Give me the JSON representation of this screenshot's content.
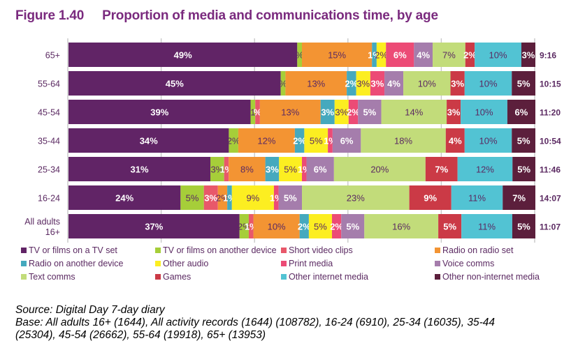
{
  "header": {
    "figure_number": "Figure 1.40",
    "title": "Proportion of media and communications time, by age"
  },
  "chart_data": {
    "type": "bar",
    "orientation": "horizontal",
    "stacked": "percent",
    "title": "Proportion of media and communications time, by age",
    "xlabel": "",
    "ylabel": "",
    "xlim": [
      0,
      100
    ],
    "grid": true,
    "gridlines_at": [
      0,
      20,
      40,
      60,
      80,
      100
    ],
    "legend_position": "bottom",
    "categories": [
      "65+",
      "55-64",
      "45-54",
      "35-44",
      "25-34",
      "16-24",
      "All adults 16+"
    ],
    "category_lines": [
      [
        "65+"
      ],
      [
        "55-64"
      ],
      [
        "45-54"
      ],
      [
        "35-44"
      ],
      [
        "25-34"
      ],
      [
        "16-24"
      ],
      [
        "All adults",
        "16+"
      ]
    ],
    "totals": [
      "9:16",
      "10:15",
      "11:20",
      "10:54",
      "11:46",
      "14:07",
      "11:07"
    ],
    "series": [
      {
        "name": "TV or films on a TV set",
        "color": "#612466",
        "label_color": "#ffffff",
        "values": [
          49,
          45,
          39,
          34,
          31,
          24,
          37
        ],
        "labels": [
          "49%",
          "45%",
          "39%",
          "34%",
          "31%",
          "24%",
          "37%"
        ]
      },
      {
        "name": "TV or films on another device",
        "color": "#a6ce39",
        "label_color": "#5b2a62",
        "values": [
          1,
          1,
          1,
          2,
          3,
          5,
          2
        ],
        "labels": [
          "%",
          "%",
          "1",
          "2%",
          "3%",
          "5%",
          "2%"
        ]
      },
      {
        "name": "Short video clips",
        "color": "#e8586a",
        "label_color": "#ffffff",
        "values": [
          0,
          0,
          1,
          0,
          1,
          3,
          1
        ],
        "labels": [
          "",
          "",
          "%",
          "",
          "1%",
          "3%",
          "1%"
        ]
      },
      {
        "name": "Radio on radio set",
        "color": "#f39433",
        "label_color": "#5b2a62",
        "values": [
          15,
          13,
          13,
          12,
          8,
          2,
          10
        ],
        "labels": [
          "15%",
          "13%",
          "13%",
          "12%",
          "8%",
          "2%",
          "10%"
        ]
      },
      {
        "name": "Radio on another device",
        "color": "#45a9be",
        "label_color": "#ffffff",
        "values": [
          1,
          2,
          3,
          2,
          3,
          1,
          2
        ],
        "labels": [
          "1%",
          "2%",
          "3%",
          "2%",
          "3%",
          "1%",
          "2%"
        ]
      },
      {
        "name": "Other audio",
        "color": "#fcee21",
        "label_color": "#5b2a62",
        "values": [
          2,
          3,
          3,
          5,
          5,
          9,
          5
        ],
        "labels": [
          "2%",
          "3%",
          "3%",
          "5%",
          "5%",
          "9%",
          "5%"
        ]
      },
      {
        "name": "Print media",
        "color": "#ec4b76",
        "label_color": "#ffffff",
        "values": [
          6,
          3,
          2,
          1,
          1,
          1,
          2
        ],
        "labels": [
          "6%",
          "3%",
          "2%",
          "1%",
          "1%",
          "1%",
          "2%"
        ]
      },
      {
        "name": "Voice comms",
        "color": "#a57dac",
        "label_color": "#ffffff",
        "values": [
          4,
          4,
          5,
          6,
          6,
          5,
          5
        ],
        "labels": [
          "4%",
          "4%",
          "5%",
          "6%",
          "6%",
          "5%",
          "5%"
        ]
      },
      {
        "name": "Text comms",
        "color": "#c2dc7a",
        "label_color": "#5b2a62",
        "values": [
          7,
          10,
          14,
          18,
          20,
          23,
          16
        ],
        "labels": [
          "7%",
          "10%",
          "14%",
          "18%",
          "20%",
          "23%",
          "16%"
        ]
      },
      {
        "name": "Games",
        "color": "#cb3a46",
        "label_color": "#ffffff",
        "values": [
          2,
          3,
          3,
          4,
          7,
          9,
          5
        ],
        "labels": [
          "2%",
          "3%",
          "3%",
          "4%",
          "7%",
          "9%",
          "5%"
        ]
      },
      {
        "name": "Other internet media",
        "color": "#52c3d3",
        "label_color": "#5b2a62",
        "values": [
          10,
          10,
          10,
          10,
          12,
          11,
          11
        ],
        "labels": [
          "10%",
          "10%",
          "10%",
          "10%",
          "12%",
          "11%",
          "11%"
        ]
      },
      {
        "name": "Other non-internet media",
        "color": "#5c1f3c",
        "label_color": "#ffffff",
        "values": [
          3,
          5,
          6,
          5,
          5,
          7,
          5
        ],
        "labels": [
          "3%",
          "5%",
          "6%",
          "5%",
          "5%",
          "7%",
          "5%"
        ]
      }
    ]
  },
  "legend": {
    "items": [
      "TV or films on a TV set",
      "TV or films on another device",
      "Short video clips",
      "Radio on radio set",
      "Radio on another device",
      "Other audio",
      "Print media",
      "Voice comms",
      "Text comms",
      "Games",
      "Other internet media",
      "Other non-internet media"
    ]
  },
  "footer": {
    "source": "Source: Digital Day 7-day diary",
    "base_line1": "Base:  All adults 16+ (1644), All activity records (1644) (108782), 16-24 (6910), 25-34 (16035), 35-44",
    "base_line2": "(25304), 45-54 (26662), 55-64 (19918), 65+ (13953)"
  }
}
